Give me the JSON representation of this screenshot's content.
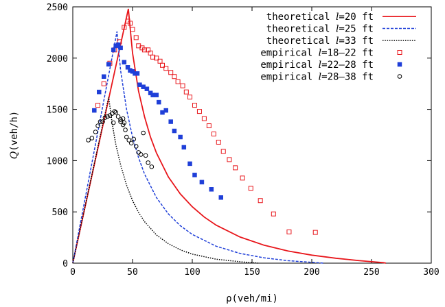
{
  "chart_data": {
    "type": "scatter",
    "title": "",
    "xlabel": "ρ(veh/mi)",
    "ylabel_symbol": "Q",
    "ylabel_unit": "(veh/h)",
    "xlim": [
      0,
      300
    ],
    "ylim": [
      0,
      2500
    ],
    "xticks": [
      0,
      50,
      100,
      150,
      200,
      250,
      300
    ],
    "yticks": [
      0,
      500,
      1000,
      1500,
      2000,
      2500
    ],
    "grid": false,
    "legend_position": "top-right",
    "series": [
      {
        "name": "theoretical",
        "param": "=20 ft",
        "kind": "line",
        "dash": "solid",
        "color": "#e8161b",
        "points": [
          [
            0,
            0
          ],
          [
            46.5,
            2480
          ],
          [
            50,
            2050
          ],
          [
            55,
            1680
          ],
          [
            60,
            1430
          ],
          [
            65,
            1230
          ],
          [
            70,
            1075
          ],
          [
            80,
            840
          ],
          [
            90,
            675
          ],
          [
            100,
            550
          ],
          [
            110,
            450
          ],
          [
            120,
            370
          ],
          [
            140,
            255
          ],
          [
            160,
            175
          ],
          [
            180,
            118
          ],
          [
            200,
            78
          ],
          [
            220,
            48
          ],
          [
            240,
            24
          ],
          [
            260,
            5
          ],
          [
            262,
            0
          ]
        ]
      },
      {
        "name": "theoretical",
        "param": "=25 ft",
        "kind": "line",
        "dash": "dashed",
        "color": "#1f3fd8",
        "points": [
          [
            0,
            0
          ],
          [
            37,
            2260
          ],
          [
            40,
            1880
          ],
          [
            45,
            1500
          ],
          [
            50,
            1230
          ],
          [
            55,
            1030
          ],
          [
            60,
            870
          ],
          [
            70,
            640
          ],
          [
            80,
            480
          ],
          [
            90,
            365
          ],
          [
            100,
            280
          ],
          [
            120,
            165
          ],
          [
            140,
            95
          ],
          [
            160,
            52
          ],
          [
            180,
            24
          ],
          [
            200,
            8
          ],
          [
            210,
            0
          ]
        ]
      },
      {
        "name": "theoretical",
        "param": "=33 ft",
        "kind": "line",
        "dash": "dotted",
        "color": "#000000",
        "points": [
          [
            0,
            0
          ],
          [
            30,
            1620
          ],
          [
            33,
            1360
          ],
          [
            36,
            1160
          ],
          [
            40,
            960
          ],
          [
            45,
            760
          ],
          [
            50,
            610
          ],
          [
            55,
            495
          ],
          [
            60,
            405
          ],
          [
            70,
            275
          ],
          [
            80,
            190
          ],
          [
            90,
            130
          ],
          [
            100,
            88
          ],
          [
            120,
            38
          ],
          [
            140,
            14
          ],
          [
            155,
            0
          ]
        ]
      },
      {
        "name": "empirical",
        "param": "=18–22 ft",
        "kind": "markers",
        "marker": "open-square",
        "color": "#e8161b",
        "points": [
          [
            21,
            1540
          ],
          [
            26,
            1750
          ],
          [
            31,
            1950
          ],
          [
            35,
            2080
          ],
          [
            39,
            2160
          ],
          [
            43,
            2300
          ],
          [
            46,
            2360
          ],
          [
            48,
            2340
          ],
          [
            50,
            2280
          ],
          [
            53,
            2200
          ],
          [
            55,
            2120
          ],
          [
            58,
            2100
          ],
          [
            60,
            2080
          ],
          [
            63,
            2080
          ],
          [
            65,
            2050
          ],
          [
            67,
            2010
          ],
          [
            70,
            2000
          ],
          [
            73,
            1970
          ],
          [
            75,
            1930
          ],
          [
            78,
            1900
          ],
          [
            82,
            1860
          ],
          [
            85,
            1820
          ],
          [
            88,
            1770
          ],
          [
            92,
            1730
          ],
          [
            95,
            1670
          ],
          [
            98,
            1620
          ],
          [
            102,
            1540
          ],
          [
            106,
            1480
          ],
          [
            110,
            1410
          ],
          [
            114,
            1340
          ],
          [
            118,
            1260
          ],
          [
            122,
            1180
          ],
          [
            126,
            1090
          ],
          [
            131,
            1010
          ],
          [
            136,
            930
          ],
          [
            142,
            830
          ],
          [
            149,
            730
          ],
          [
            157,
            610
          ],
          [
            168,
            480
          ],
          [
            181,
            305
          ],
          [
            203,
            300
          ]
        ]
      },
      {
        "name": "empirical",
        "param": "=22–28 ft",
        "kind": "markers",
        "marker": "filled-square",
        "color": "#1f3fd8",
        "points": [
          [
            18,
            1490
          ],
          [
            22,
            1670
          ],
          [
            26,
            1820
          ],
          [
            30,
            1940
          ],
          [
            34,
            2080
          ],
          [
            36,
            2120
          ],
          [
            38,
            2130
          ],
          [
            40,
            2100
          ],
          [
            43,
            1960
          ],
          [
            46,
            1910
          ],
          [
            48,
            1880
          ],
          [
            50,
            1870
          ],
          [
            52,
            1850
          ],
          [
            54,
            1850
          ],
          [
            56,
            1740
          ],
          [
            59,
            1720
          ],
          [
            62,
            1700
          ],
          [
            65,
            1660
          ],
          [
            67,
            1640
          ],
          [
            70,
            1640
          ],
          [
            72,
            1570
          ],
          [
            75,
            1470
          ],
          [
            78,
            1490
          ],
          [
            82,
            1380
          ],
          [
            85,
            1290
          ],
          [
            90,
            1230
          ],
          [
            93,
            1130
          ],
          [
            98,
            970
          ],
          [
            102,
            860
          ],
          [
            108,
            790
          ],
          [
            116,
            720
          ],
          [
            124,
            640
          ]
        ]
      },
      {
        "name": "empirical",
        "param": "=28–38 ft",
        "kind": "markers",
        "marker": "open-circle",
        "color": "#000000",
        "points": [
          [
            13,
            1200
          ],
          [
            16,
            1220
          ],
          [
            19,
            1280
          ],
          [
            21,
            1340
          ],
          [
            23,
            1380
          ],
          [
            25,
            1380
          ],
          [
            27,
            1420
          ],
          [
            29,
            1430
          ],
          [
            31,
            1440
          ],
          [
            33,
            1460
          ],
          [
            35,
            1480
          ],
          [
            36,
            1470
          ],
          [
            38,
            1430
          ],
          [
            40,
            1380
          ],
          [
            42,
            1350
          ],
          [
            43,
            1370
          ],
          [
            44,
            1300
          ],
          [
            45,
            1230
          ],
          [
            47,
            1200
          ],
          [
            49,
            1170
          ],
          [
            51,
            1210
          ],
          [
            53,
            1140
          ],
          [
            55,
            1080
          ],
          [
            57,
            1060
          ],
          [
            59,
            1270
          ],
          [
            61,
            1050
          ],
          [
            63,
            980
          ],
          [
            66,
            940
          ],
          [
            40,
            1400
          ],
          [
            42,
            1410
          ],
          [
            34,
            1370
          ]
        ]
      }
    ]
  }
}
